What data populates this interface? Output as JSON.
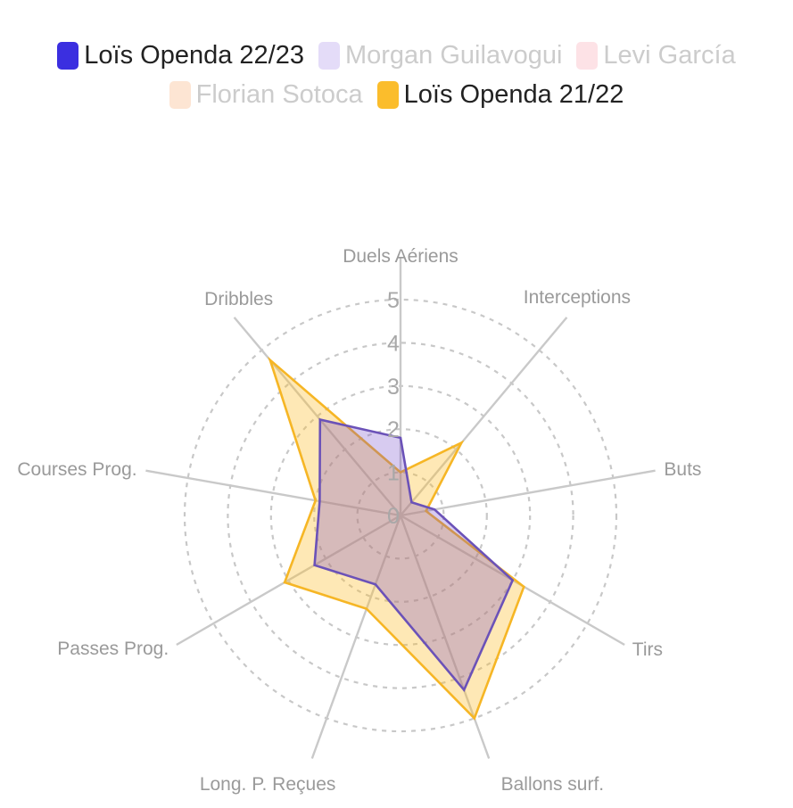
{
  "legend": [
    {
      "name": "Loïs Openda 22/23",
      "color": "#3b2fe0",
      "visible": true
    },
    {
      "name": "Morgan Guilavogui",
      "color": "#e4dcf8",
      "visible": false
    },
    {
      "name": "Levi García",
      "color": "#fde2e6",
      "visible": false
    },
    {
      "name": "Florian Sotoca",
      "color": "#fde5d3",
      "visible": false
    },
    {
      "name": "Loïs Openda 21/22",
      "color": "#fbbd2c",
      "visible": true
    }
  ],
  "chart_data": {
    "type": "radar",
    "axes": [
      "Duels Aériens",
      "Interceptions",
      "Buts",
      "Tirs",
      "Ballons surf.",
      "Long. P. Reçues",
      "Passes Prog.",
      "Courses Prog.",
      "Dribbles"
    ],
    "rlim": [
      0,
      5
    ],
    "ticks": [
      "0",
      "1",
      "2",
      "3",
      "4",
      "5"
    ],
    "grid": true,
    "series": [
      {
        "name": "Loïs Openda 21/22",
        "color": "#fbbd2c",
        "values": [
          1.0,
          2.2,
          0.6,
          3.3,
          5.0,
          2.3,
          3.1,
          2.0,
          4.7
        ]
      },
      {
        "name": "Loïs Openda 22/23",
        "color": "#6b52b8",
        "values": [
          1.8,
          0.4,
          0.8,
          3.0,
          4.3,
          1.7,
          2.3,
          1.9,
          2.9
        ]
      }
    ]
  }
}
